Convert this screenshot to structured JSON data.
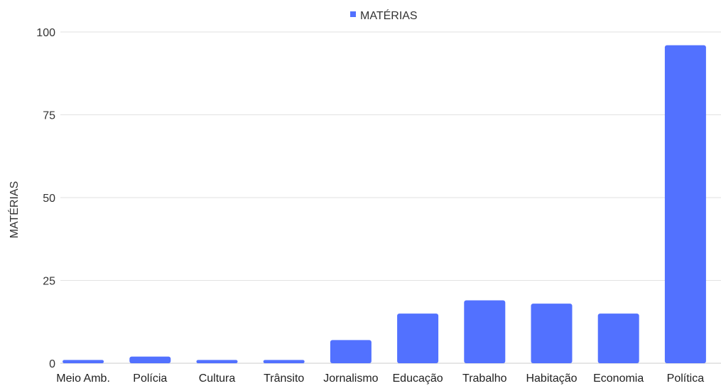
{
  "chart_data": {
    "type": "bar",
    "title": "",
    "xlabel": "",
    "ylabel": "MATÉRIAS",
    "categories": [
      "Meio Amb.",
      "Polícia",
      "Cultura",
      "Trânsito",
      "Jornalismo",
      "Educação",
      "Trabalho",
      "Habitação",
      "Economia",
      "Política"
    ],
    "series": [
      {
        "name": "MATÉRIAS",
        "values": [
          1,
          2,
          1,
          1,
          7,
          15,
          19,
          18,
          15,
          96
        ],
        "color": "#5271ff"
      }
    ],
    "ylim": [
      0,
      100
    ],
    "yticks": [
      0,
      25,
      50,
      75,
      100
    ],
    "grid": true,
    "legend": "top-center"
  }
}
